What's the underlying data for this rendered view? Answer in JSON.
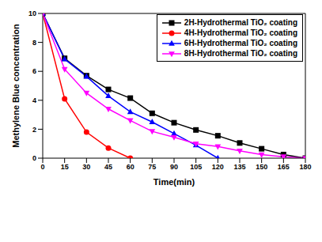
{
  "chart_data": {
    "type": "line",
    "x_label": "Time(min)",
    "y_label": "Methylene Blue concentration",
    "x": [
      0,
      15,
      30,
      45,
      60,
      75,
      90,
      105,
      120,
      135,
      150,
      165,
      180
    ],
    "xlim": [
      0,
      180
    ],
    "xticks": [
      0,
      15,
      30,
      45,
      60,
      75,
      90,
      105,
      120,
      135,
      150,
      165,
      180
    ],
    "ylim": [
      0,
      10
    ],
    "yticks": [
      0,
      2,
      4,
      6,
      8,
      10
    ],
    "grid": false,
    "legend": "upper right",
    "series": [
      {
        "name": "2H-Hydrothermal TiO₂ coating",
        "color": "#000000",
        "marker": "square",
        "values": [
          10,
          6.9,
          5.7,
          4.75,
          4.15,
          3.1,
          2.45,
          1.95,
          1.55,
          1.05,
          0.65,
          0.25,
          0
        ]
      },
      {
        "name": "4H-Hydrothermal TiO₂ coating",
        "color": "#ff0000",
        "marker": "circle",
        "values": [
          10,
          4.1,
          1.8,
          0.7,
          0,
          null,
          null,
          null,
          null,
          null,
          null,
          null,
          null
        ]
      },
      {
        "name": "6H-Hydrothermal TiO₂ coating",
        "color": "#0000ff",
        "marker": "triangle",
        "values": [
          10,
          6.85,
          5.65,
          4.3,
          3.2,
          2.5,
          1.7,
          0.9,
          0,
          null,
          null,
          null,
          null
        ]
      },
      {
        "name": "8H-Hydrothermal TiO₂ coating",
        "color": "#ff00ff",
        "marker": "triangle_down",
        "values": [
          10,
          6.15,
          4.5,
          3.4,
          2.6,
          1.85,
          1.45,
          1.0,
          0.8,
          0.5,
          0.25,
          0.1,
          0
        ]
      }
    ]
  }
}
